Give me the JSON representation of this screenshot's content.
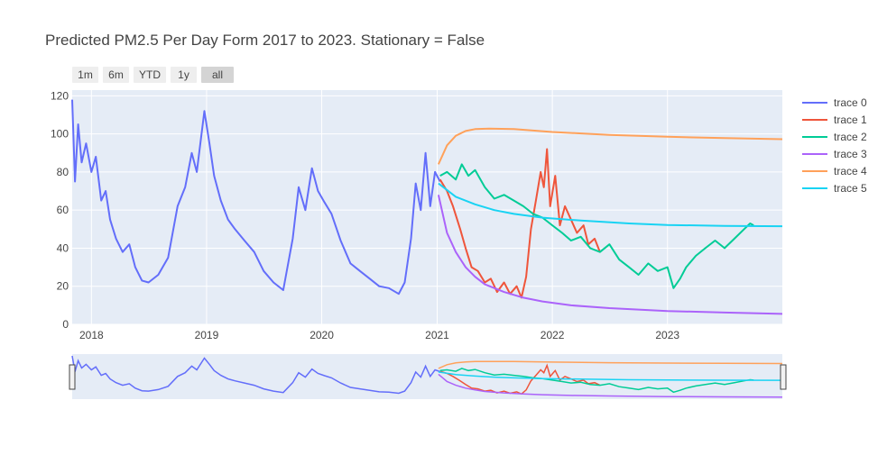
{
  "chart_data": {
    "type": "line",
    "title": "Predicted PM2.5 Per Day Form 2017 to 2023. Stationary = False",
    "xlabel": "",
    "ylabel": "",
    "x_range": [
      "2017-11-01",
      "2023-12-31"
    ],
    "ylim": [
      0,
      123
    ],
    "x_ticks": [
      "2018",
      "2019",
      "2020",
      "2021",
      "2022",
      "2023"
    ],
    "y_ticks": [
      0,
      20,
      40,
      60,
      80,
      100,
      120
    ],
    "grid": true,
    "legend_position": "right",
    "range_selector": [
      "1m",
      "6m",
      "YTD",
      "1y",
      "all"
    ],
    "range_selector_active": "all",
    "range_slider": true,
    "series": [
      {
        "name": "trace 0",
        "color": "#636efa",
        "points": [
          [
            "2017-11-01",
            118
          ],
          [
            "2017-11-10",
            75
          ],
          [
            "2017-11-20",
            105
          ],
          [
            "2017-12-01",
            85
          ],
          [
            "2017-12-15",
            95
          ],
          [
            "2018-01-01",
            80
          ],
          [
            "2018-01-15",
            88
          ],
          [
            "2018-02-01",
            65
          ],
          [
            "2018-02-15",
            70
          ],
          [
            "2018-03-01",
            55
          ],
          [
            "2018-03-20",
            45
          ],
          [
            "2018-04-10",
            38
          ],
          [
            "2018-05-01",
            42
          ],
          [
            "2018-05-20",
            30
          ],
          [
            "2018-06-10",
            23
          ],
          [
            "2018-07-01",
            22
          ],
          [
            "2018-08-01",
            26
          ],
          [
            "2018-09-01",
            35
          ],
          [
            "2018-10-01",
            62
          ],
          [
            "2018-10-25",
            72
          ],
          [
            "2018-11-15",
            90
          ],
          [
            "2018-12-01",
            80
          ],
          [
            "2018-12-25",
            112
          ],
          [
            "2019-01-10",
            95
          ],
          [
            "2019-01-25",
            78
          ],
          [
            "2019-02-15",
            65
          ],
          [
            "2019-03-10",
            55
          ],
          [
            "2019-04-01",
            50
          ],
          [
            "2019-05-01",
            44
          ],
          [
            "2019-06-01",
            38
          ],
          [
            "2019-07-01",
            28
          ],
          [
            "2019-08-01",
            22
          ],
          [
            "2019-09-01",
            18
          ],
          [
            "2019-10-01",
            45
          ],
          [
            "2019-10-20",
            72
          ],
          [
            "2019-11-10",
            60
          ],
          [
            "2019-12-01",
            82
          ],
          [
            "2019-12-20",
            70
          ],
          [
            "2020-01-10",
            64
          ],
          [
            "2020-02-01",
            58
          ],
          [
            "2020-03-01",
            44
          ],
          [
            "2020-04-01",
            32
          ],
          [
            "2020-05-01",
            28
          ],
          [
            "2020-06-01",
            24
          ],
          [
            "2020-07-01",
            20
          ],
          [
            "2020-08-01",
            19
          ],
          [
            "2020-09-01",
            16
          ],
          [
            "2020-09-20",
            22
          ],
          [
            "2020-10-10",
            45
          ],
          [
            "2020-10-25",
            74
          ],
          [
            "2020-11-10",
            60
          ],
          [
            "2020-11-25",
            90
          ],
          [
            "2020-12-10",
            62
          ],
          [
            "2020-12-25",
            80
          ],
          [
            "2021-01-10",
            75
          ]
        ]
      },
      {
        "name": "trace 1",
        "color": "#ef553b",
        "points": [
          [
            "2021-01-10",
            76
          ],
          [
            "2021-02-01",
            70
          ],
          [
            "2021-02-20",
            62
          ],
          [
            "2021-03-15",
            50
          ],
          [
            "2021-04-01",
            40
          ],
          [
            "2021-04-20",
            30
          ],
          [
            "2021-05-10",
            28
          ],
          [
            "2021-06-01",
            22
          ],
          [
            "2021-06-20",
            24
          ],
          [
            "2021-07-10",
            17
          ],
          [
            "2021-08-01",
            22
          ],
          [
            "2021-08-20",
            16
          ],
          [
            "2021-09-10",
            20
          ],
          [
            "2021-09-25",
            14
          ],
          [
            "2021-10-10",
            25
          ],
          [
            "2021-10-25",
            50
          ],
          [
            "2021-11-10",
            65
          ],
          [
            "2021-11-25",
            80
          ],
          [
            "2021-12-05",
            72
          ],
          [
            "2021-12-15",
            92
          ],
          [
            "2021-12-25",
            62
          ],
          [
            "2022-01-10",
            78
          ],
          [
            "2022-01-25",
            52
          ],
          [
            "2022-02-10",
            62
          ],
          [
            "2022-03-01",
            55
          ],
          [
            "2022-03-20",
            48
          ],
          [
            "2022-04-10",
            52
          ],
          [
            "2022-04-25",
            42
          ],
          [
            "2022-05-15",
            45
          ],
          [
            "2022-06-01",
            38
          ]
        ]
      },
      {
        "name": "trace 2",
        "color": "#00cc96",
        "points": [
          [
            "2021-01-10",
            78
          ],
          [
            "2021-02-01",
            80
          ],
          [
            "2021-03-01",
            76
          ],
          [
            "2021-03-20",
            84
          ],
          [
            "2021-04-10",
            78
          ],
          [
            "2021-05-01",
            81
          ],
          [
            "2021-06-01",
            72
          ],
          [
            "2021-07-01",
            66
          ],
          [
            "2021-08-01",
            68
          ],
          [
            "2021-09-01",
            65
          ],
          [
            "2021-10-01",
            62
          ],
          [
            "2021-11-01",
            58
          ],
          [
            "2021-12-01",
            56
          ],
          [
            "2022-01-01",
            52
          ],
          [
            "2022-02-01",
            48
          ],
          [
            "2022-03-01",
            44
          ],
          [
            "2022-04-01",
            46
          ],
          [
            "2022-05-01",
            40
          ],
          [
            "2022-06-01",
            38
          ],
          [
            "2022-07-01",
            42
          ],
          [
            "2022-08-01",
            34
          ],
          [
            "2022-09-01",
            30
          ],
          [
            "2022-10-01",
            26
          ],
          [
            "2022-11-01",
            32
          ],
          [
            "2022-12-01",
            28
          ],
          [
            "2023-01-01",
            30
          ],
          [
            "2023-01-20",
            19
          ],
          [
            "2023-02-10",
            24
          ],
          [
            "2023-03-01",
            30
          ],
          [
            "2023-04-01",
            36
          ],
          [
            "2023-05-01",
            40
          ],
          [
            "2023-06-01",
            44
          ],
          [
            "2023-07-01",
            40
          ],
          [
            "2023-08-01",
            45
          ],
          [
            "2023-09-01",
            50
          ],
          [
            "2023-09-20",
            53
          ],
          [
            "2023-10-01",
            52
          ]
        ]
      },
      {
        "name": "trace 3",
        "color": "#ab63fa",
        "points": [
          [
            "2021-01-05",
            68
          ],
          [
            "2021-02-01",
            48
          ],
          [
            "2021-03-01",
            38
          ],
          [
            "2021-04-01",
            30
          ],
          [
            "2021-05-01",
            25
          ],
          [
            "2021-06-01",
            21
          ],
          [
            "2021-08-01",
            17
          ],
          [
            "2021-10-01",
            14
          ],
          [
            "2021-12-01",
            12
          ],
          [
            "2022-03-01",
            10
          ],
          [
            "2022-07-01",
            8.5
          ],
          [
            "2023-01-01",
            7
          ],
          [
            "2023-07-01",
            6.2
          ],
          [
            "2023-12-31",
            5.5
          ]
        ]
      },
      {
        "name": "trace 4",
        "color": "#ffa15a",
        "points": [
          [
            "2021-01-05",
            84
          ],
          [
            "2021-02-01",
            94
          ],
          [
            "2021-03-01",
            99
          ],
          [
            "2021-04-01",
            101.5
          ],
          [
            "2021-05-01",
            102.5
          ],
          [
            "2021-06-15",
            102.8
          ],
          [
            "2021-09-01",
            102.5
          ],
          [
            "2022-01-01",
            101
          ],
          [
            "2022-07-01",
            99.5
          ],
          [
            "2023-01-01",
            98.5
          ],
          [
            "2023-07-01",
            97.8
          ],
          [
            "2023-12-31",
            97.2
          ]
        ]
      },
      {
        "name": "trace 5",
        "color": "#19d3f3",
        "points": [
          [
            "2021-01-05",
            74
          ],
          [
            "2021-03-01",
            67
          ],
          [
            "2021-05-01",
            63
          ],
          [
            "2021-07-01",
            60
          ],
          [
            "2021-09-01",
            58
          ],
          [
            "2021-12-01",
            56
          ],
          [
            "2022-04-01",
            54.5
          ],
          [
            "2022-09-01",
            53
          ],
          [
            "2023-01-01",
            52.2
          ],
          [
            "2023-07-01",
            51.7
          ],
          [
            "2023-12-31",
            51.5
          ]
        ]
      }
    ]
  }
}
